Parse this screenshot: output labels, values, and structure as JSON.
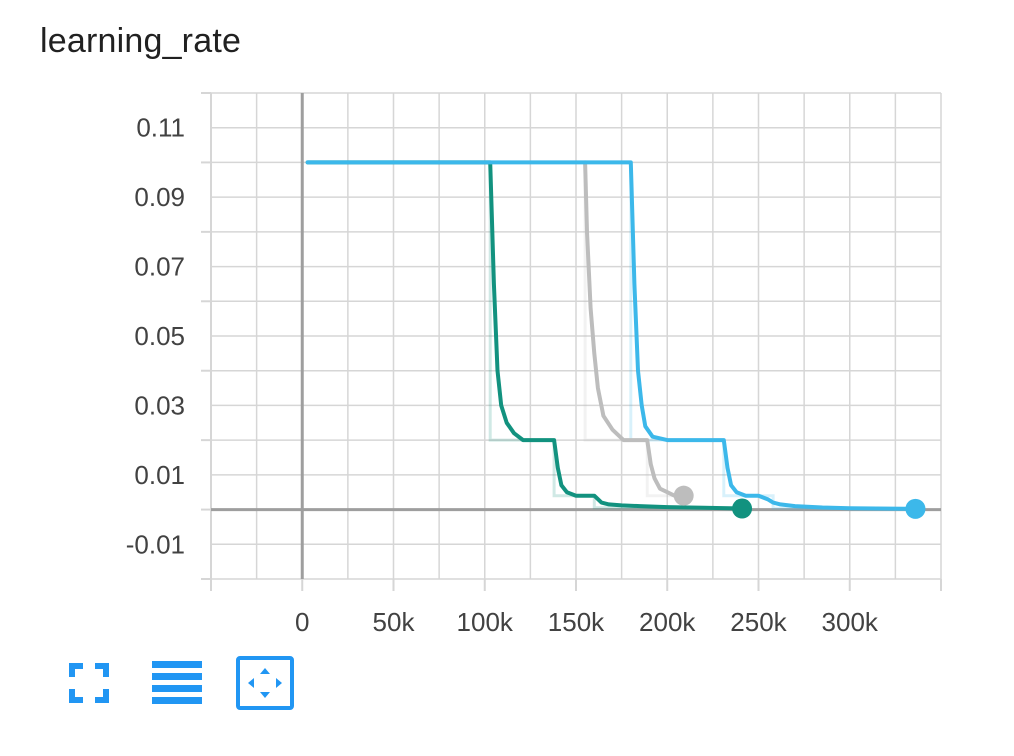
{
  "chart_title": "learning_rate",
  "colors": {
    "teal": "#12927f",
    "gray": "#bdbdbd",
    "blue": "#3cb8ea",
    "grid": "#d6d6d6",
    "axis": "#9e9e9e",
    "toolbar_icon": "#2196f3"
  },
  "toolbar": {
    "icons": [
      "fullscreen-icon",
      "lines-menu-icon",
      "fit-domain-icon"
    ],
    "active_index": 2
  },
  "chart_data": {
    "type": "line",
    "title": "learning_rate",
    "xlabel": "",
    "ylabel": "",
    "xlim": [
      -50000,
      350000
    ],
    "ylim": [
      -0.02,
      0.12
    ],
    "x_ticks": [
      0,
      50000,
      100000,
      150000,
      200000,
      250000,
      300000
    ],
    "x_tick_labels": [
      "0",
      "50k",
      "100k",
      "150k",
      "200k",
      "250k",
      "300k"
    ],
    "y_ticks": [
      -0.01,
      0.01,
      0.03,
      0.05,
      0.07,
      0.09,
      0.11
    ],
    "y_tick_labels": [
      "-0.01",
      "0.01",
      "0.03",
      "0.05",
      "0.07",
      "0.09",
      "0.11"
    ],
    "grid": true,
    "legend": "none",
    "series": [
      {
        "color": "#12927f",
        "x": [
          3000,
          103000,
          105000,
          107000,
          109000,
          112000,
          116000,
          121000,
          138000,
          140000,
          142000,
          145000,
          150000,
          160000,
          164000,
          168000,
          175000,
          185000,
          200000,
          220000,
          241000
        ],
        "y": [
          0.1,
          0.1,
          0.065,
          0.04,
          0.03,
          0.025,
          0.022,
          0.02,
          0.02,
          0.012,
          0.007,
          0.005,
          0.004,
          0.004,
          0.002,
          0.0015,
          0.0012,
          0.001,
          0.0007,
          0.0005,
          0.0003
        ],
        "raw_x": [
          3000,
          103000,
          103000,
          138000,
          138000,
          160000,
          160000,
          241000
        ],
        "raw_y": [
          0.1,
          0.1,
          0.02,
          0.02,
          0.004,
          0.004,
          0.0005,
          0.0005
        ],
        "end_marker": true
      },
      {
        "color": "#bdbdbd",
        "x": [
          155000,
          156000,
          158000,
          160000,
          162000,
          165000,
          170000,
          176000,
          189000,
          191000,
          193000,
          196000,
          200000,
          204000,
          209000
        ],
        "y": [
          0.1,
          0.08,
          0.058,
          0.045,
          0.035,
          0.027,
          0.023,
          0.02,
          0.02,
          0.013,
          0.009,
          0.006,
          0.005,
          0.004,
          0.004
        ],
        "raw_x": [
          155000,
          155000,
          189000,
          189000,
          209000
        ],
        "raw_y": [
          0.1,
          0.02,
          0.02,
          0.004,
          0.004
        ],
        "end_marker": true
      },
      {
        "color": "#3cb8ea",
        "x": [
          3000,
          180000,
          182000,
          184000,
          186000,
          188000,
          192000,
          200000,
          231000,
          233000,
          235000,
          238000,
          243000,
          250000,
          255000,
          258000,
          262000,
          270000,
          285000,
          300000,
          336000
        ],
        "y": [
          0.1,
          0.1,
          0.065,
          0.04,
          0.03,
          0.024,
          0.021,
          0.02,
          0.02,
          0.012,
          0.007,
          0.005,
          0.004,
          0.004,
          0.003,
          0.002,
          0.0015,
          0.001,
          0.0006,
          0.0004,
          0.0002
        ],
        "raw_x": [
          3000,
          180000,
          180000,
          231000,
          231000,
          258000,
          258000,
          336000
        ],
        "raw_y": [
          0.1,
          0.1,
          0.02,
          0.02,
          0.004,
          0.004,
          0.0004,
          0.0004
        ],
        "end_marker": true
      }
    ]
  }
}
